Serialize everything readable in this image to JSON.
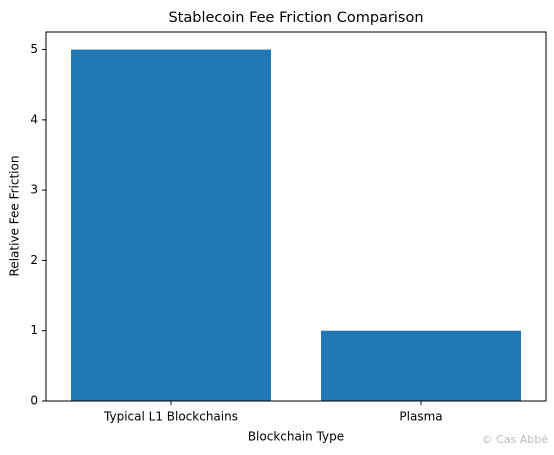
{
  "chart_data": {
    "type": "bar",
    "title": "Stablecoin Fee Friction Comparison",
    "x_label": "Blockchain Type",
    "y_label": "Relative Fee Friction",
    "categories": [
      "Typical L1 Blockchains",
      "Plasma"
    ],
    "values": [
      5,
      1
    ],
    "color": "#1f77b4",
    "ylim": [
      0,
      5.25
    ],
    "yticks": [
      0,
      1,
      2,
      3,
      4,
      5
    ],
    "grid": false,
    "watermark": "© Cas Abbé"
  }
}
